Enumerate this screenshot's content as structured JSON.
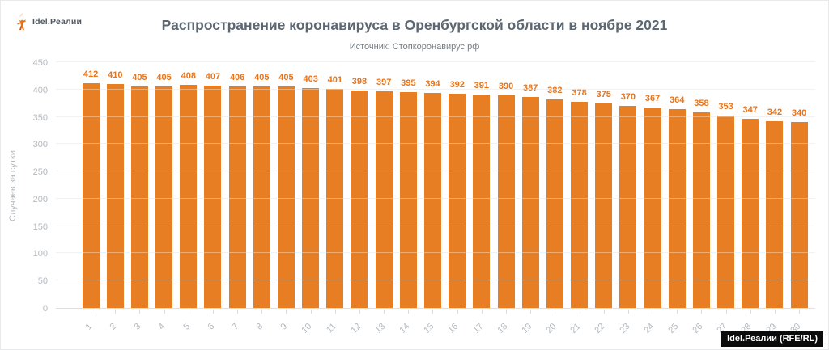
{
  "page": {
    "logo_text": "Idel.Реалии",
    "credit_badge": "Idel.Реалии (RFE/RL)"
  },
  "colors": {
    "bar": "#e87e23",
    "value_label": "#e8751c",
    "title": "#5c6771",
    "subtitle": "#727b82",
    "axis_text": "#b4bac0",
    "gridline": "#ececec",
    "badge_bg": "#0b0b0b"
  },
  "chart_data": {
    "type": "bar",
    "title": "Распространение коронавируса в Оренбургской области в ноябре 2021",
    "subtitle": "Источник: Стопкоронавирус.рф",
    "xlabel": "",
    "ylabel": "Случаев за сутки",
    "categories": [
      "1",
      "2",
      "3",
      "4",
      "5",
      "6",
      "7",
      "8",
      "9",
      "10",
      "11",
      "12",
      "13",
      "14",
      "15",
      "16",
      "17",
      "18",
      "19",
      "20",
      "21",
      "22",
      "23",
      "24",
      "25",
      "26",
      "27",
      "28",
      "29",
      "30"
    ],
    "values": [
      412,
      410,
      405,
      405,
      408,
      407,
      406,
      405,
      405,
      403,
      401,
      398,
      397,
      395,
      394,
      392,
      391,
      390,
      387,
      382,
      378,
      375,
      370,
      367,
      364,
      358,
      353,
      347,
      342,
      340
    ],
    "ylim": [
      0,
      450
    ],
    "yticks": [
      0,
      50,
      100,
      150,
      200,
      250,
      300,
      350,
      400,
      450
    ],
    "grid": true,
    "legend": false,
    "bar_value_labels": true
  }
}
